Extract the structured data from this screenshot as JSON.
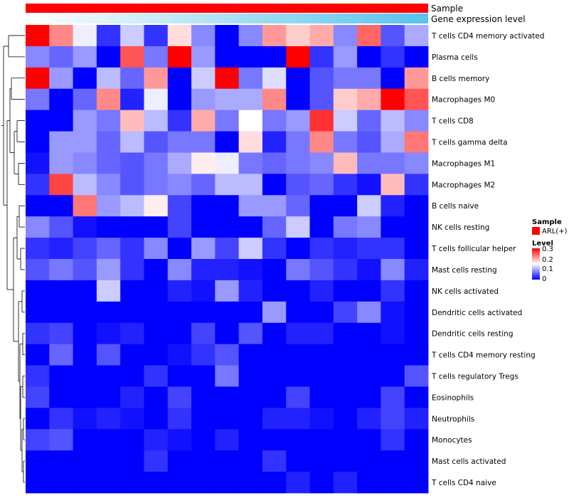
{
  "chart_data": {
    "type": "heatmap",
    "annotation_tracks": [
      {
        "name": "Sample",
        "color": "#ff0000"
      },
      {
        "name": "Gene expression level",
        "gradient": [
          "#ffffff",
          "#56c3ec"
        ]
      }
    ],
    "rows": [
      "T cells CD4 memory activated",
      "Plasma cells",
      "B cells memory",
      "Macrophages M0",
      "T cells CD8",
      "T cells gamma delta",
      "Macrophages M1",
      "Macrophages M2",
      "B cells naive",
      "NK cells resting",
      "T cells follicular helper",
      "Mast cells resting",
      "NK cells activated",
      "Dendritic cells activated",
      "Dendritic cells resting",
      "T cells CD4 memory resting",
      "T cells regulatory  Tregs",
      "Eosinophils",
      "Neutrophils",
      "Monocytes",
      "Mast cells activated",
      "T cells CD4 naive"
    ],
    "values": [
      [
        0.3,
        0.22,
        0.14,
        0.03,
        0.12,
        0.03,
        0.17,
        0.08,
        0.0,
        0.08,
        0.21,
        0.18,
        0.2,
        0.08,
        0.24,
        0.05,
        0.1
      ],
      [
        0.08,
        0.06,
        0.09,
        0.0,
        0.25,
        0.07,
        0.3,
        0.09,
        0.0,
        0.0,
        0.0,
        0.3,
        0.03,
        0.09,
        0.0,
        0.03,
        0.0
      ],
      [
        0.3,
        0.09,
        0.0,
        0.11,
        0.06,
        0.21,
        0.0,
        0.12,
        0.3,
        0.07,
        0.13,
        0.0,
        0.05,
        0.07,
        0.07,
        0.0,
        0.21
      ],
      [
        0.07,
        0.0,
        0.06,
        0.22,
        0.02,
        0.14,
        0.0,
        0.09,
        0.1,
        0.1,
        0.22,
        0.0,
        0.05,
        0.18,
        0.2,
        0.3,
        0.25
      ],
      [
        0.0,
        0.0,
        0.09,
        0.07,
        0.19,
        0.11,
        0.03,
        0.2,
        0.07,
        0.15,
        0.07,
        0.09,
        0.27,
        0.12,
        0.06,
        0.11,
        0.08
      ],
      [
        0.0,
        0.09,
        0.09,
        0.06,
        0.11,
        0.05,
        0.07,
        0.07,
        0.0,
        0.17,
        0.02,
        0.07,
        0.22,
        0.07,
        0.05,
        0.1,
        0.23
      ],
      [
        0.01,
        0.09,
        0.08,
        0.06,
        0.05,
        0.07,
        0.1,
        0.16,
        0.14,
        0.07,
        0.06,
        0.07,
        0.08,
        0.19,
        0.07,
        0.07,
        0.08
      ],
      [
        0.03,
        0.26,
        0.11,
        0.08,
        0.05,
        0.07,
        0.08,
        0.06,
        0.11,
        0.11,
        0.0,
        0.05,
        0.06,
        0.03,
        0.01,
        0.19,
        0.03
      ],
      [
        0.0,
        0.0,
        0.23,
        0.09,
        0.11,
        0.16,
        0.04,
        0.0,
        0.0,
        0.09,
        0.09,
        0.06,
        0.0,
        0.0,
        0.12,
        0.02,
        0.0
      ],
      [
        0.08,
        0.05,
        0.01,
        0.0,
        0.0,
        0.0,
        0.04,
        0.0,
        0.0,
        0.0,
        0.06,
        0.12,
        0.0,
        0.07,
        0.08,
        0.0,
        0.0
      ],
      [
        0.03,
        0.02,
        0.04,
        0.06,
        0.03,
        0.08,
        0.0,
        0.09,
        0.04,
        0.12,
        0.03,
        0.0,
        0.03,
        0.02,
        0.03,
        0.03,
        0.0
      ],
      [
        0.05,
        0.07,
        0.05,
        0.09,
        0.03,
        0.0,
        0.08,
        0.02,
        0.02,
        0.01,
        0.0,
        0.07,
        0.05,
        0.03,
        0.01,
        0.08,
        0.02
      ],
      [
        0.0,
        0.0,
        0.0,
        0.12,
        0.0,
        0.0,
        0.02,
        0.01,
        0.09,
        0.02,
        0.0,
        0.0,
        0.02,
        0.0,
        0.0,
        0.03,
        0.0
      ],
      [
        0.0,
        0.0,
        0.0,
        0.0,
        0.0,
        0.0,
        0.0,
        0.0,
        0.0,
        0.0,
        0.09,
        0.0,
        0.0,
        0.04,
        0.08,
        0.01,
        0.0
      ],
      [
        0.03,
        0.04,
        0.0,
        0.01,
        0.02,
        0.0,
        0.0,
        0.04,
        0.0,
        0.05,
        0.0,
        0.02,
        0.02,
        0.0,
        0.0,
        0.01,
        0.0
      ],
      [
        0.0,
        0.06,
        0.0,
        0.05,
        0.0,
        0.0,
        0.01,
        0.03,
        0.05,
        0.0,
        0.0,
        0.0,
        0.0,
        0.0,
        0.0,
        0.0,
        0.0
      ],
      [
        0.03,
        0.0,
        0.0,
        0.0,
        0.0,
        0.03,
        0.0,
        0.0,
        0.07,
        0.0,
        0.0,
        0.0,
        0.0,
        0.0,
        0.0,
        0.0,
        0.05
      ],
      [
        0.04,
        0.0,
        0.0,
        0.0,
        0.02,
        0.0,
        0.04,
        0.0,
        0.0,
        0.0,
        0.0,
        0.04,
        0.0,
        0.0,
        0.0,
        0.04,
        0.0
      ],
      [
        0.0,
        0.03,
        0.01,
        0.02,
        0.01,
        0.0,
        0.03,
        0.0,
        0.0,
        0.0,
        0.02,
        0.02,
        0.01,
        0.0,
        0.02,
        0.04,
        0.02
      ],
      [
        0.04,
        0.05,
        0.0,
        0.0,
        0.0,
        0.02,
        0.01,
        0.0,
        0.02,
        0.0,
        0.0,
        0.0,
        0.0,
        0.0,
        0.0,
        0.03,
        0.0
      ],
      [
        0.0,
        0.0,
        0.0,
        0.0,
        0.0,
        0.03,
        0.0,
        0.0,
        0.0,
        0.0,
        0.03,
        0.0,
        0.0,
        0.0,
        0.0,
        0.0,
        0.0
      ],
      [
        0.0,
        0.0,
        0.0,
        0.0,
        0.0,
        0.0,
        0.0,
        0.0,
        0.0,
        0.0,
        0.0,
        0.02,
        0.0,
        0.02,
        0.0,
        0.0,
        0.0
      ]
    ],
    "color_scale": {
      "min": 0,
      "mid": 0.15,
      "max": 0.3,
      "low": "#0000ff",
      "midColor": "#ffffff",
      "high": "#ff0000"
    },
    "legend": {
      "sample_title": "Sample",
      "sample_entry": "ARL(+)",
      "sample_color": "#ff0000",
      "level_title": "Level",
      "ticks": [
        "0.3",
        "0.2",
        "0.1",
        "0"
      ]
    },
    "row_dendrogram": true,
    "placement": "legend right"
  }
}
